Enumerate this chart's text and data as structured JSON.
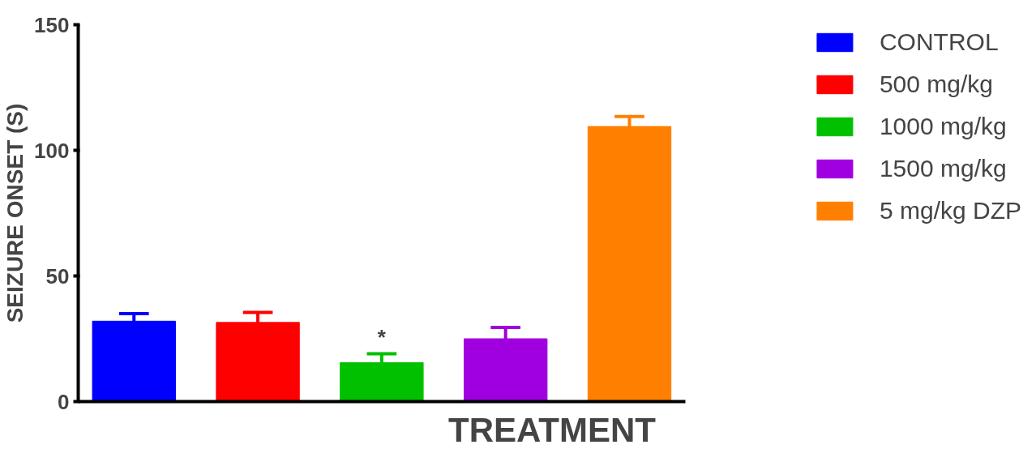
{
  "chart_data": {
    "type": "bar",
    "xlabel": "TREATMENT",
    "ylabel": "SEIZURE ONSET (S)",
    "categories": [
      null,
      null,
      null,
      null,
      null
    ],
    "series": [
      {
        "name": "CONTROL",
        "color": "#0000ff",
        "values": [
          32,
          null,
          null,
          null,
          null
        ],
        "errors": [
          3,
          null,
          null,
          null,
          null
        ]
      },
      {
        "name": "500 mg/kg",
        "color": "#ff0000",
        "values": [
          null,
          31.5,
          null,
          null,
          null
        ],
        "errors": [
          null,
          4,
          null,
          null,
          null
        ]
      },
      {
        "name": "1000 mg/kg",
        "color": "#00c000",
        "values": [
          null,
          null,
          15.5,
          null,
          null
        ],
        "errors": [
          null,
          null,
          3.5,
          null,
          null
        ]
      },
      {
        "name": "1500 mg/kg",
        "color": "#a000e0",
        "values": [
          null,
          null,
          null,
          25,
          null
        ],
        "errors": [
          null,
          null,
          null,
          4.5,
          null
        ]
      },
      {
        "name": "5 mg/kg DZP",
        "color": "#ff8000",
        "values": [
          null,
          null,
          null,
          null,
          109.5
        ],
        "errors": [
          null,
          null,
          null,
          null,
          4
        ]
      }
    ],
    "annotations": [
      "*"
    ],
    "ylim": [
      0,
      150
    ],
    "yticks": [
      0,
      50,
      100,
      150
    ],
    "grid": false,
    "legend": "right",
    "tick_labels": "y"
  }
}
